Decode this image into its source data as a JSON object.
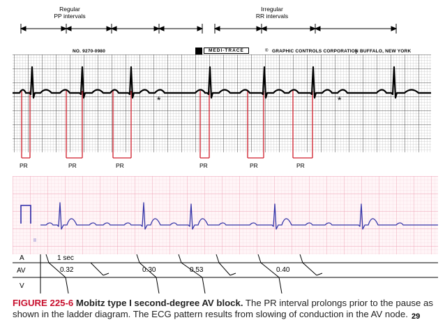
{
  "labels": {
    "regular_line1": "Regular",
    "regular_line2": "PP intervals",
    "irregular_line1": "Irregular",
    "irregular_line2": "RR intervals"
  },
  "strip_header": {
    "number": "NO. 9270-0980",
    "brand": "MEDI-TRACE",
    "company": "GRAPHIC CONTROLS CORPORATION",
    "city": "BUFFALO, NEW YORK"
  },
  "top_ecg": {
    "pr_label": "PR",
    "star": "*"
  },
  "ladder": {
    "row_a": "A",
    "row_av": "AV",
    "row_v": "V",
    "sec": "1 sec",
    "values": [
      "0.32",
      "0.30",
      "0.53",
      "0.40"
    ]
  },
  "caption": {
    "figure": "FIGURE 225-6",
    "title": "Mobitz type I second-degree AV block.",
    "text": " The PR interval prolongs prior to the pause as shown in the ladder diagram. The ECG pattern results from slowing of conduction in the AV node."
  },
  "page_number": "29",
  "colors": {
    "caption_red": "#c8102e",
    "pink_grid": "#f2b8c6",
    "ecg_blue": "#2a2aa8",
    "pr_red": "#d01c2a"
  }
}
